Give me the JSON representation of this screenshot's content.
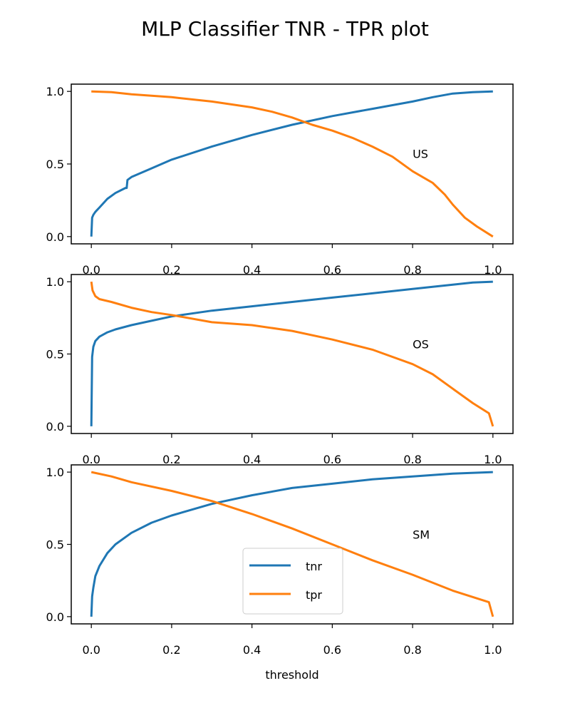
{
  "title": "MLP Classifier TNR - TPR plot",
  "chart_data": {
    "type": "line",
    "xlabel": "threshold",
    "xlim": [
      -0.05,
      1.05
    ],
    "ylim": [
      -0.05,
      1.05
    ],
    "xticks": [
      "0.0",
      "0.2",
      "0.4",
      "0.6",
      "0.8",
      "1.0"
    ],
    "yticks": [
      "0.0",
      "0.5",
      "1.0"
    ],
    "series_names": [
      "tnr",
      "tpr"
    ],
    "colors": {
      "tnr": "#1f77b4",
      "tpr": "#ff7f0e"
    },
    "legend": {
      "location": "lower-center",
      "panel": 2
    },
    "panels": [
      {
        "annotation": "US",
        "series": [
          {
            "name": "tnr",
            "x": [
              0,
              0.002,
              0.005,
              0.01,
              0.02,
              0.04,
              0.06,
              0.085,
              0.088,
              0.09,
              0.1,
              0.15,
              0.2,
              0.3,
              0.4,
              0.5,
              0.6,
              0.7,
              0.8,
              0.85,
              0.9,
              0.95,
              1.0
            ],
            "y": [
              0.0,
              0.13,
              0.15,
              0.17,
              0.2,
              0.26,
              0.3,
              0.335,
              0.335,
              0.39,
              0.41,
              0.47,
              0.53,
              0.62,
              0.7,
              0.77,
              0.83,
              0.88,
              0.93,
              0.96,
              0.985,
              0.995,
              1.0
            ]
          },
          {
            "name": "tpr",
            "x": [
              0,
              0.05,
              0.1,
              0.2,
              0.3,
              0.4,
              0.45,
              0.5,
              0.55,
              0.6,
              0.65,
              0.7,
              0.75,
              0.8,
              0.85,
              0.88,
              0.9,
              0.93,
              0.96,
              1.0
            ],
            "y": [
              1.0,
              0.995,
              0.98,
              0.96,
              0.93,
              0.89,
              0.86,
              0.82,
              0.77,
              0.73,
              0.68,
              0.62,
              0.55,
              0.45,
              0.37,
              0.29,
              0.22,
              0.13,
              0.07,
              0.0
            ]
          }
        ]
      },
      {
        "annotation": "OS",
        "series": [
          {
            "name": "tnr",
            "x": [
              0,
              0.002,
              0.005,
              0.01,
              0.02,
              0.04,
              0.06,
              0.1,
              0.15,
              0.2,
              0.3,
              0.4,
              0.5,
              0.6,
              0.7,
              0.8,
              0.9,
              0.95,
              1.0
            ],
            "y": [
              0.0,
              0.48,
              0.55,
              0.59,
              0.62,
              0.65,
              0.67,
              0.7,
              0.73,
              0.76,
              0.8,
              0.83,
              0.86,
              0.89,
              0.92,
              0.95,
              0.98,
              0.995,
              1.0
            ]
          },
          {
            "name": "tpr",
            "x": [
              0,
              0.003,
              0.01,
              0.02,
              0.05,
              0.1,
              0.15,
              0.2,
              0.3,
              0.4,
              0.5,
              0.6,
              0.7,
              0.8,
              0.85,
              0.9,
              0.95,
              0.99,
              1.0
            ],
            "y": [
              1.0,
              0.94,
              0.9,
              0.88,
              0.86,
              0.82,
              0.79,
              0.77,
              0.72,
              0.7,
              0.66,
              0.6,
              0.53,
              0.43,
              0.36,
              0.26,
              0.16,
              0.09,
              0.0
            ]
          }
        ]
      },
      {
        "annotation": "SM",
        "series": [
          {
            "name": "tnr",
            "x": [
              0,
              0.002,
              0.005,
              0.01,
              0.02,
              0.04,
              0.06,
              0.1,
              0.15,
              0.2,
              0.3,
              0.4,
              0.5,
              0.6,
              0.7,
              0.8,
              0.9,
              1.0
            ],
            "y": [
              0.0,
              0.14,
              0.2,
              0.28,
              0.35,
              0.44,
              0.5,
              0.58,
              0.65,
              0.7,
              0.78,
              0.84,
              0.89,
              0.92,
              0.95,
              0.97,
              0.99,
              1.0
            ]
          },
          {
            "name": "tpr",
            "x": [
              0,
              0.05,
              0.1,
              0.2,
              0.3,
              0.4,
              0.5,
              0.6,
              0.7,
              0.8,
              0.9,
              0.99,
              1.0
            ],
            "y": [
              1.0,
              0.97,
              0.93,
              0.87,
              0.8,
              0.71,
              0.61,
              0.5,
              0.39,
              0.29,
              0.18,
              0.1,
              0.0
            ]
          }
        ]
      }
    ]
  }
}
